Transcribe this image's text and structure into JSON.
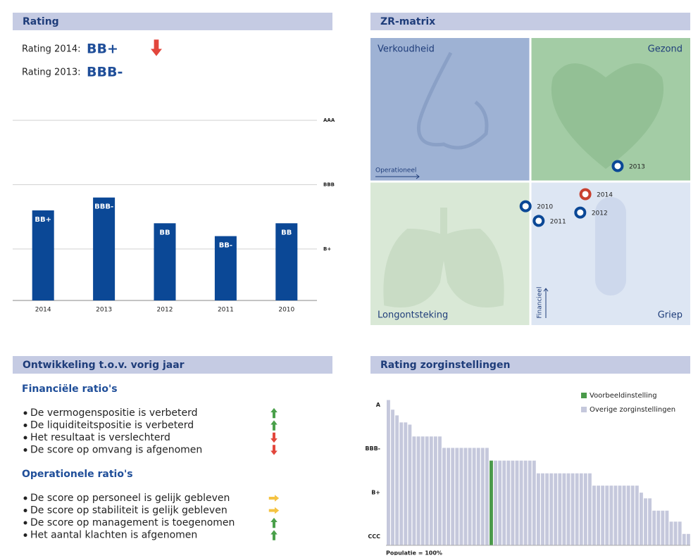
{
  "headers": [
    "Rating",
    "ZR-matrix",
    "Ontwikkeling t.o.v. vorig jaar",
    "Rating zorginstellingen"
  ],
  "rating_summary": [
    {
      "label": "Rating 2014:",
      "value": "BB+",
      "trend": "down"
    },
    {
      "label": "Rating 2013:",
      "value": "BBB-"
    }
  ],
  "ontwikkeling": [
    {
      "title": "Financiële ratio's",
      "items": [
        {
          "text": "De vermogenspositie is verbeterd",
          "trend": "up"
        },
        {
          "text": "De liquiditeitspositie is verbeterd",
          "trend": "up"
        },
        {
          "text": "Het resultaat is verslechterd",
          "trend": "down"
        },
        {
          "text": "De score op omvang is afgenomen",
          "trend": "down"
        }
      ]
    },
    {
      "title": "Operationele ratio's",
      "items": [
        {
          "text": "De score op personeel is gelijk gebleven",
          "trend": "same"
        },
        {
          "text": "De score op stabiliteit is gelijk gebleven",
          "trend": "same"
        },
        {
          "text": "De score op management is toegenomen",
          "trend": "up"
        },
        {
          "text": "Het aantal klachten is afgenomen",
          "trend": "up"
        }
      ]
    }
  ],
  "chart_data": [
    {
      "type": "bar",
      "categories": [
        "2014",
        "2013",
        "2012",
        "2011",
        "2010"
      ],
      "values": [
        7,
        8,
        6,
        5,
        6
      ],
      "value_labels": [
        "BB+",
        "BBB-",
        "BB",
        "BB-",
        "BB"
      ],
      "color": "#0b4896",
      "ylim": [
        0,
        14
      ],
      "yticks": [
        {
          "value": 4,
          "label": "B+"
        },
        {
          "value": 9,
          "label": "BBB"
        },
        {
          "value": 14,
          "label": "AAA"
        }
      ],
      "grid": true
    },
    {
      "type": "scatter",
      "quadrant_labels": [
        "Verkoudheid",
        "Gezond",
        "Longontsteking",
        "Griep"
      ],
      "quadrant_colors": [
        "#9eb2d4",
        "#a3cca5",
        "#d9e8d6",
        "#dde6f3"
      ],
      "x_label": "Operationeel",
      "y_label": "Financieel",
      "xlim": [
        0,
        100
      ],
      "ylim": [
        0,
        100
      ],
      "point_labels": [
        "2013",
        "2014",
        "2010",
        "2011",
        "2012"
      ],
      "x": [
        77.3,
        67.2,
        48.5,
        52.6,
        65.6
      ],
      "values": [
        55.4,
        45.6,
        41.4,
        36.3,
        39.2
      ],
      "point_colors": [
        "#0b4896",
        "#c8402f",
        "#0b4896",
        "#0b4896",
        "#0b4896"
      ]
    },
    {
      "type": "population",
      "x_label": "Populatie = 100%",
      "ylim": [
        0.8,
        4.15
      ],
      "yticks": [
        {
          "value": 1,
          "label": "CCC"
        },
        {
          "value": 2,
          "label": "B+"
        },
        {
          "value": 3,
          "label": "BBB-"
        },
        {
          "value": 4,
          "label": "A"
        }
      ],
      "legend": "top-right",
      "series": [
        {
          "name": "Voorbeeldinstelling",
          "color": "#4a9a4a",
          "values": [
            null,
            null,
            null,
            null,
            null,
            null,
            null,
            null,
            null,
            null,
            null,
            null,
            null,
            null,
            null,
            null,
            null,
            null,
            null,
            null,
            null,
            null,
            null,
            null,
            2.73,
            null,
            null,
            null,
            null,
            null,
            null,
            null,
            null,
            null,
            null,
            null,
            null,
            null,
            null,
            null,
            null,
            null,
            null,
            null,
            null,
            null,
            null,
            null,
            null,
            null,
            null,
            null,
            null,
            null,
            null,
            null,
            null,
            null,
            null,
            null,
            null,
            null,
            null,
            null,
            null,
            null,
            null,
            null,
            null,
            null,
            null
          ]
        },
        {
          "name": "Overige zorginstellingen",
          "color": "#c5c8dc",
          "values": [
            4.11,
            3.89,
            3.76,
            3.6,
            3.6,
            3.55,
            3.28,
            3.28,
            3.28,
            3.28,
            3.28,
            3.28,
            3.28,
            3.02,
            3.02,
            3.02,
            3.02,
            3.02,
            3.02,
            3.02,
            3.02,
            3.02,
            3.02,
            3.02,
            null,
            2.73,
            2.73,
            2.73,
            2.73,
            2.73,
            2.73,
            2.73,
            2.73,
            2.73,
            2.73,
            2.44,
            2.44,
            2.44,
            2.44,
            2.44,
            2.44,
            2.44,
            2.44,
            2.44,
            2.44,
            2.44,
            2.44,
            2.44,
            2.16,
            2.16,
            2.16,
            2.16,
            2.16,
            2.16,
            2.16,
            2.16,
            2.16,
            2.16,
            2.16,
            2.0,
            1.87,
            1.87,
            1.59,
            1.59,
            1.59,
            1.59,
            1.34,
            1.34,
            1.34,
            1.06,
            1.06
          ]
        }
      ]
    }
  ]
}
